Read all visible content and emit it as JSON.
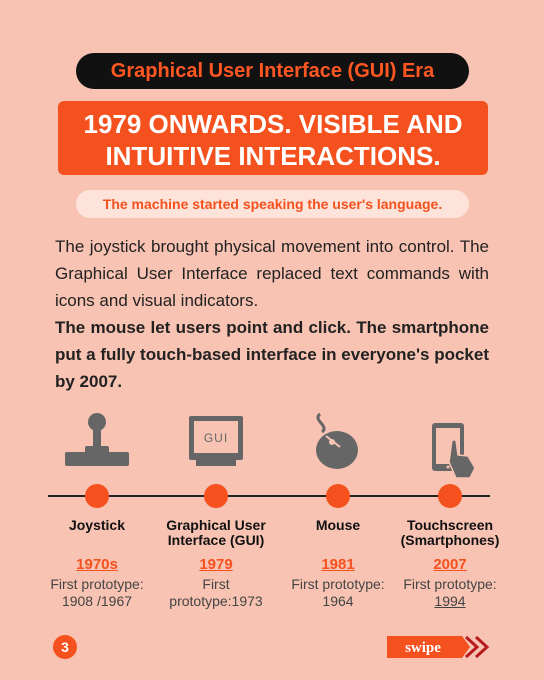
{
  "header": {
    "title": "Graphical User Interface (GUI) Era",
    "banner": [
      "1979 ONWARDS. VISIBLE AND",
      "INTUITIVE INTERACTIONS."
    ],
    "tagline": "The machine started speaking the user's language."
  },
  "body": {
    "paragraph": "The joystick brought physical movement into control. The Graphical User Interface replaced text commands with icons and visual indicators.",
    "bold_paragraph": "The mouse let users point and click. The smartphone put a fully touch-based interface in everyone's pocket by 2007."
  },
  "icon_label": "GUI",
  "timeline": [
    {
      "name": [
        "Joystick"
      ],
      "year": "1970s",
      "note": [
        "First prototype:",
        "1908 /1967"
      ]
    },
    {
      "name": [
        "Graphical User",
        "Interface (GUI)"
      ],
      "year": "1979",
      "note": [
        "First",
        "prototype:1973"
      ]
    },
    {
      "name": [
        "Mouse"
      ],
      "year": "1981",
      "note": [
        "First prototype:",
        "1964"
      ]
    },
    {
      "name": [
        "Touchscreen",
        "(Smartphones)"
      ],
      "year": "2007",
      "note": [
        "First prototype:",
        "1994"
      ]
    }
  ],
  "footer": {
    "page": "3",
    "swipe": "swipe"
  }
}
